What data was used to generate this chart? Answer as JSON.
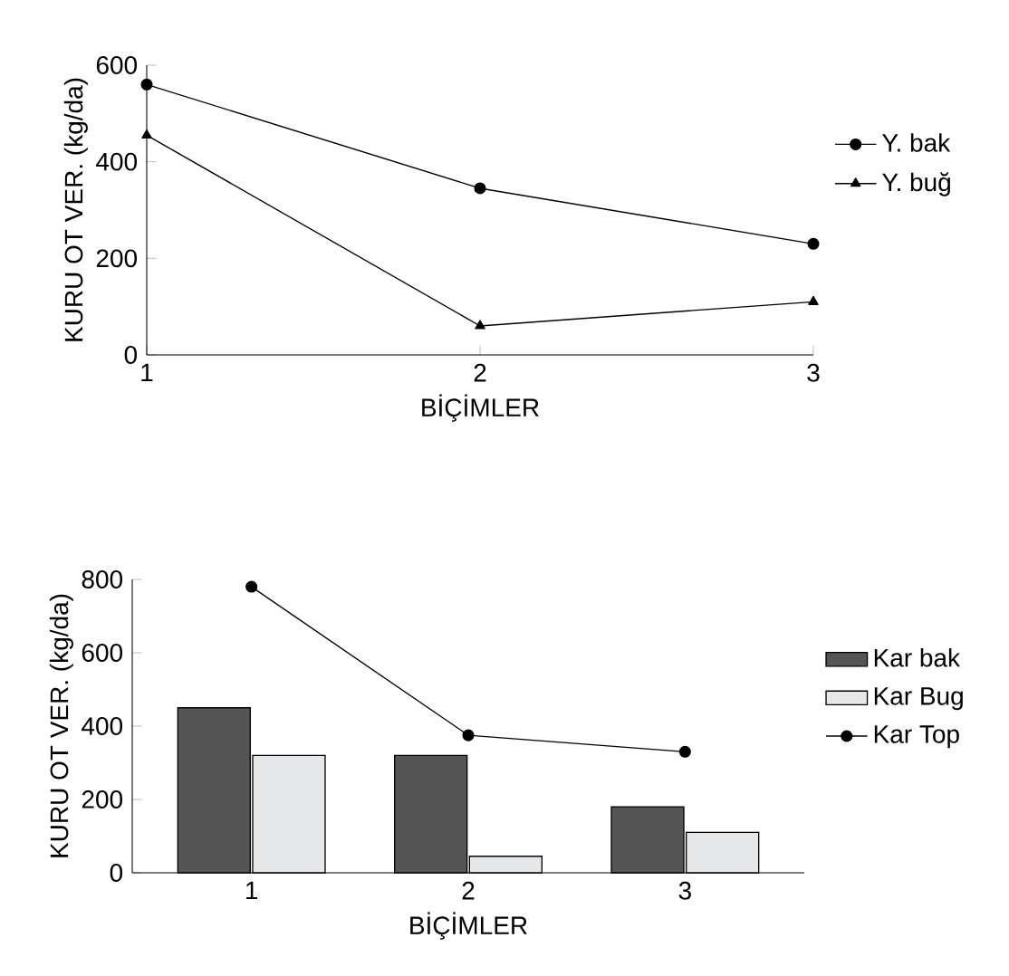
{
  "chart_data": [
    {
      "type": "line",
      "xlabel": "BİÇİMLER",
      "ylabel": "KURU OT VER. (kg/da)",
      "x": [
        1,
        2,
        3
      ],
      "xlim": [
        1,
        3
      ],
      "xticks": [
        1,
        2,
        3
      ],
      "ylim": [
        0,
        600
      ],
      "yticks": [
        0,
        200,
        400,
        600
      ],
      "legend": "right",
      "series": [
        {
          "name": "Y. bak",
          "color": "#000000",
          "marker": "circle",
          "values": [
            560,
            345,
            230
          ]
        },
        {
          "name": "Y. buğ",
          "color": "#000000",
          "marker": "triangle",
          "values": [
            455,
            60,
            110
          ]
        }
      ]
    },
    {
      "type": "bar",
      "xlabel": "BİÇİMLER",
      "ylabel": "KURU OT VER. (kg/da)",
      "categories": [
        "1",
        "2",
        "3"
      ],
      "ylim": [
        0,
        800
      ],
      "yticks": [
        0,
        200,
        400,
        600,
        800
      ],
      "legend": "right",
      "series": [
        {
          "name": "Kar bak",
          "color": "#555555",
          "values": [
            450,
            320,
            180
          ]
        },
        {
          "name": "Kar Bug",
          "color": "#e6e7e8",
          "values": [
            320,
            45,
            110
          ]
        },
        {
          "name": "Kar Top",
          "type": "line",
          "color": "#000000",
          "marker": "circle",
          "values": [
            780,
            375,
            330
          ]
        }
      ]
    }
  ]
}
